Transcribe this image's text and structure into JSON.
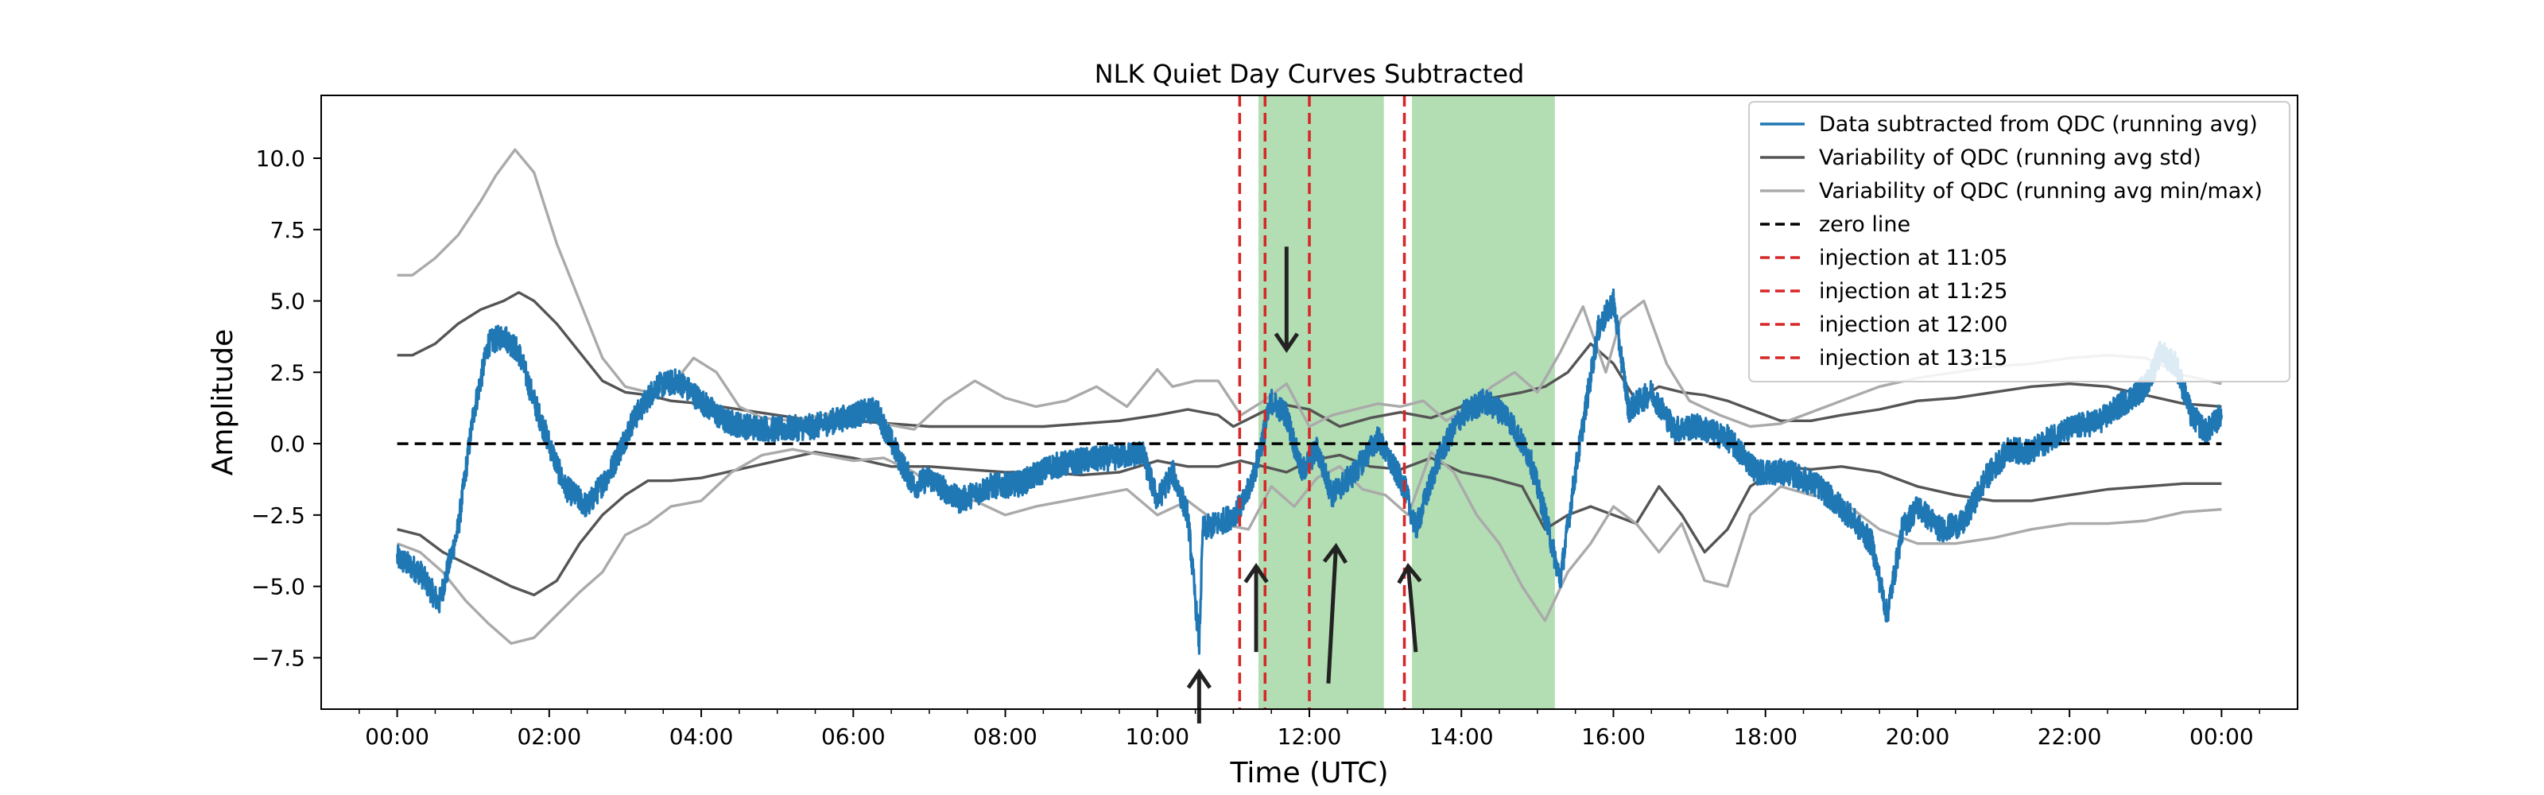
{
  "chart_data": {
    "type": "line",
    "title": "NLK Quiet Day Curves Subtracted",
    "xlabel": "Time (UTC)",
    "ylabel": "Amplitude",
    "xlim": [
      -1.0,
      25.0
    ],
    "ylim": [
      -9.3,
      12.2
    ],
    "grid": false,
    "legend_position": "top-right",
    "x_ticks": [
      0,
      2,
      4,
      6,
      8,
      10,
      12,
      14,
      16,
      18,
      20,
      22,
      24
    ],
    "x_tick_labels": [
      "00:00",
      "02:00",
      "04:00",
      "06:00",
      "08:00",
      "10:00",
      "12:00",
      "14:00",
      "16:00",
      "18:00",
      "20:00",
      "22:00",
      "00:00"
    ],
    "y_ticks": [
      -7.5,
      -5.0,
      -2.5,
      0.0,
      2.5,
      5.0,
      7.5,
      10.0
    ],
    "y_tick_labels": [
      "−7.5",
      "−5.0",
      "−2.5",
      "0.0",
      "2.5",
      "5.0",
      "7.5",
      "10.0"
    ],
    "series": [
      {
        "name": "Data subtracted from QDC (running avg)",
        "color": "#1f77b4",
        "style": "solid",
        "noisy": true,
        "x": [
          0,
          0.3,
          0.55,
          0.8,
          1.0,
          1.2,
          1.4,
          1.6,
          1.8,
          2.0,
          2.2,
          2.5,
          2.8,
          3.1,
          3.4,
          3.7,
          4.0,
          4.3,
          4.6,
          5.0,
          5.5,
          6.0,
          6.3,
          6.6,
          6.8,
          7.0,
          7.4,
          7.8,
          8.2,
          8.6,
          9.0,
          9.4,
          9.8,
          10.0,
          10.2,
          10.4,
          10.5,
          10.55,
          10.6,
          10.8,
          11.0,
          11.15,
          11.3,
          11.5,
          11.7,
          11.9,
          12.1,
          12.3,
          12.6,
          12.9,
          13.1,
          13.25,
          13.4,
          13.7,
          14.0,
          14.3,
          14.6,
          14.9,
          15.1,
          15.3,
          15.5,
          15.8,
          16.0,
          16.2,
          16.5,
          16.8,
          17.1,
          17.5,
          17.9,
          18.3,
          18.7,
          19.1,
          19.4,
          19.6,
          19.8,
          20.0,
          20.3,
          20.6,
          20.9,
          21.2,
          21.5,
          21.8,
          22.1,
          22.4,
          22.7,
          23.0,
          23.2,
          23.4,
          23.6,
          23.8,
          24.0
        ],
        "y": [
          -4.0,
          -4.5,
          -5.6,
          -3.0,
          1.0,
          3.5,
          3.8,
          3.2,
          1.5,
          0.0,
          -1.5,
          -2.2,
          -1.0,
          0.8,
          2.0,
          2.2,
          1.5,
          0.8,
          0.6,
          0.5,
          0.6,
          1.0,
          1.2,
          -0.5,
          -1.5,
          -1.2,
          -2.0,
          -1.5,
          -1.4,
          -0.8,
          -0.6,
          -0.5,
          -0.3,
          -2.0,
          -1.0,
          -2.5,
          -5.5,
          -7.0,
          -3.0,
          -2.8,
          -2.5,
          -2.0,
          -0.8,
          1.5,
          1.0,
          -1.0,
          -0.2,
          -1.8,
          -1.0,
          0.2,
          -0.8,
          -1.5,
          -3.0,
          -0.5,
          1.0,
          1.5,
          1.0,
          -0.5,
          -2.5,
          -4.8,
          -1.0,
          4.0,
          5.0,
          1.2,
          1.8,
          0.5,
          0.6,
          0.2,
          -1.0,
          -1.0,
          -1.5,
          -2.5,
          -3.5,
          -6.0,
          -3.0,
          -2.2,
          -3.0,
          -2.8,
          -1.2,
          -0.2,
          -0.3,
          0.3,
          0.6,
          0.8,
          1.4,
          2.0,
          3.2,
          2.8,
          1.0,
          0.4,
          1.0
        ]
      },
      {
        "name": "Variability of QDC (running avg std)",
        "color": "#555555",
        "style": "solid",
        "x": [
          0,
          0.2,
          0.5,
          0.8,
          1.1,
          1.4,
          1.6,
          1.8,
          2.1,
          2.4,
          2.7,
          3.0,
          3.3,
          3.6,
          4.0,
          4.5,
          5.0,
          5.5,
          6.0,
          6.5,
          7.0,
          7.5,
          8.0,
          8.5,
          9.0,
          9.5,
          10.0,
          10.4,
          10.8,
          11.0,
          11.3,
          11.6,
          12.0,
          12.4,
          12.8,
          13.2,
          13.6,
          14.0,
          14.4,
          14.8,
          15.1,
          15.4,
          15.7,
          16.0,
          16.3,
          16.6,
          16.9,
          17.2,
          17.5,
          17.8,
          18.2,
          18.6,
          19.0,
          19.5,
          20.0,
          20.5,
          21.0,
          21.5,
          22.0,
          22.5,
          23.0,
          23.5,
          24.0
        ],
        "y": [
          3.1,
          3.1,
          3.5,
          4.2,
          4.7,
          5.0,
          5.3,
          5.0,
          4.2,
          3.2,
          2.2,
          1.8,
          1.7,
          1.5,
          1.4,
          1.2,
          1.0,
          0.8,
          0.8,
          0.7,
          0.6,
          0.6,
          0.6,
          0.6,
          0.7,
          0.8,
          1.0,
          1.2,
          1.0,
          0.6,
          1.0,
          1.4,
          1.2,
          0.6,
          0.9,
          1.1,
          0.9,
          1.3,
          1.6,
          1.8,
          2.0,
          2.5,
          3.5,
          2.8,
          1.5,
          2.0,
          1.8,
          1.7,
          1.5,
          1.2,
          0.8,
          0.8,
          1.0,
          1.2,
          1.5,
          1.6,
          1.8,
          2.0,
          2.1,
          2.0,
          1.7,
          1.4,
          1.3
        ]
      },
      {
        "name": "",
        "color": "#555555",
        "style": "solid",
        "x": [
          0,
          0.3,
          0.6,
          0.9,
          1.2,
          1.5,
          1.8,
          2.1,
          2.4,
          2.7,
          3.0,
          3.3,
          3.6,
          4.0,
          4.5,
          5.0,
          5.5,
          6.0,
          6.5,
          7.0,
          7.5,
          8.0,
          8.5,
          9.0,
          9.5,
          10.0,
          10.4,
          10.8,
          11.1,
          11.4,
          11.7,
          12.0,
          12.4,
          12.8,
          13.2,
          13.6,
          14.0,
          14.4,
          14.8,
          15.1,
          15.4,
          15.7,
          16.0,
          16.3,
          16.6,
          16.9,
          17.2,
          17.5,
          17.8,
          18.2,
          18.6,
          19.0,
          19.5,
          20.0,
          20.5,
          21.0,
          21.5,
          22.0,
          22.5,
          23.0,
          23.5,
          24.0
        ],
        "y": [
          -3.0,
          -3.2,
          -3.8,
          -4.2,
          -4.6,
          -5.0,
          -5.3,
          -4.8,
          -3.5,
          -2.5,
          -1.8,
          -1.3,
          -1.3,
          -1.2,
          -0.9,
          -0.6,
          -0.3,
          -0.5,
          -0.8,
          -0.8,
          -0.9,
          -1.0,
          -1.0,
          -1.1,
          -1.0,
          -0.6,
          -0.8,
          -0.8,
          -0.6,
          -0.8,
          -1.0,
          -0.6,
          -0.4,
          -0.8,
          -0.9,
          -0.5,
          -1.0,
          -1.2,
          -1.5,
          -3.0,
          -2.5,
          -2.2,
          -2.5,
          -2.8,
          -1.5,
          -2.5,
          -3.8,
          -3.0,
          -1.5,
          -0.8,
          -0.9,
          -0.8,
          -1.0,
          -1.5,
          -1.8,
          -2.0,
          -2.0,
          -1.8,
          -1.6,
          -1.5,
          -1.4,
          -1.4
        ]
      },
      {
        "name": "Variability of QDC (running avg min/max)",
        "color": "#aaaaaa",
        "style": "solid",
        "x": [
          0,
          0.2,
          0.5,
          0.8,
          1.1,
          1.3,
          1.55,
          1.8,
          2.1,
          2.4,
          2.7,
          3.0,
          3.3,
          3.6,
          3.9,
          4.2,
          4.5,
          4.8,
          5.2,
          5.6,
          6.0,
          6.4,
          6.8,
          7.2,
          7.6,
          8.0,
          8.4,
          8.8,
          9.2,
          9.6,
          10.0,
          10.2,
          10.5,
          10.8,
          11.1,
          11.4,
          11.7,
          12.0,
          12.3,
          12.6,
          12.9,
          13.2,
          13.5,
          13.8,
          14.1,
          14.4,
          14.7,
          15.0,
          15.3,
          15.6,
          15.9,
          16.1,
          16.4,
          16.7,
          17.0,
          17.4,
          17.8,
          18.2,
          18.6,
          19.0,
          19.5,
          20.0,
          20.5,
          21.0,
          21.5,
          22.0,
          22.5,
          23.0,
          23.5,
          24.0
        ],
        "y": [
          5.9,
          5.9,
          6.5,
          7.3,
          8.5,
          9.4,
          10.3,
          9.5,
          7.0,
          5.0,
          3.0,
          2.0,
          1.8,
          2.0,
          3.0,
          2.5,
          1.3,
          0.9,
          0.8,
          1.0,
          1.2,
          0.7,
          0.5,
          1.5,
          2.2,
          1.6,
          1.3,
          1.5,
          2.0,
          1.3,
          2.6,
          2.0,
          2.2,
          2.2,
          1.0,
          1.5,
          2.1,
          0.6,
          1.0,
          1.2,
          1.4,
          1.3,
          1.5,
          0.8,
          1.3,
          2.0,
          2.5,
          1.8,
          3.2,
          4.8,
          2.5,
          4.4,
          5.0,
          2.8,
          1.5,
          1.0,
          0.6,
          0.7,
          1.1,
          1.5,
          2.0,
          2.3,
          2.5,
          2.7,
          2.8,
          3.0,
          3.1,
          3.0,
          2.4,
          2.1
        ]
      },
      {
        "name": "",
        "color": "#aaaaaa",
        "style": "solid",
        "x": [
          0,
          0.3,
          0.6,
          0.9,
          1.2,
          1.5,
          1.8,
          2.1,
          2.4,
          2.7,
          3.0,
          3.3,
          3.6,
          4.0,
          4.4,
          4.8,
          5.2,
          5.6,
          6.0,
          6.4,
          6.8,
          7.2,
          7.6,
          8.0,
          8.4,
          8.8,
          9.2,
          9.6,
          10.0,
          10.4,
          10.8,
          11.2,
          11.5,
          11.8,
          12.1,
          12.4,
          12.7,
          13.0,
          13.3,
          13.6,
          13.9,
          14.2,
          14.5,
          14.8,
          15.1,
          15.4,
          15.7,
          16.0,
          16.3,
          16.6,
          16.9,
          17.2,
          17.5,
          17.8,
          18.2,
          18.6,
          19.0,
          19.5,
          20.0,
          20.5,
          21.0,
          21.5,
          22.0,
          22.5,
          23.0,
          23.5,
          24.0
        ],
        "y": [
          -3.5,
          -3.8,
          -4.5,
          -5.5,
          -6.3,
          -7.0,
          -6.8,
          -6.0,
          -5.2,
          -4.5,
          -3.2,
          -2.8,
          -2.2,
          -2.0,
          -1.0,
          -0.4,
          -0.2,
          -0.4,
          -0.6,
          -0.5,
          -1.0,
          -1.8,
          -2.0,
          -2.5,
          -2.2,
          -2.0,
          -1.8,
          -1.6,
          -2.5,
          -2.0,
          -2.8,
          -3.0,
          -1.5,
          -2.2,
          -1.2,
          -0.8,
          -1.6,
          -1.8,
          -2.5,
          -0.3,
          -1.0,
          -2.5,
          -3.5,
          -5.0,
          -6.2,
          -4.5,
          -3.5,
          -2.2,
          -2.8,
          -3.8,
          -2.8,
          -4.8,
          -5.0,
          -2.5,
          -1.5,
          -1.8,
          -2.0,
          -3.0,
          -3.5,
          -3.5,
          -3.3,
          -3.0,
          -2.8,
          -2.8,
          -2.7,
          -2.4,
          -2.3
        ]
      }
    ],
    "reference_lines": [
      {
        "name": "zero line",
        "orientation": "horizontal",
        "value": 0.0,
        "color": "#000000",
        "style": "dashed"
      }
    ],
    "injections": [
      {
        "name": "injection at 11:05",
        "x": 11.083,
        "color": "#d62728",
        "style": "dashed"
      },
      {
        "name": "injection at 11:25",
        "x": 11.417,
        "color": "#d62728",
        "style": "dashed"
      },
      {
        "name": "injection at 12:00",
        "x": 12.0,
        "color": "#d62728",
        "style": "dashed"
      },
      {
        "name": "injection at 13:15",
        "x": 13.25,
        "color": "#d62728",
        "style": "dashed"
      }
    ],
    "shaded_regions": [
      {
        "x0": 11.33,
        "x1": 12.98,
        "color": "#2ca02c",
        "alpha": 0.36
      },
      {
        "x0": 13.35,
        "x1": 15.23,
        "color": "#2ca02c",
        "alpha": 0.36
      }
    ],
    "arrows": [
      {
        "direction": "up",
        "x_start": 10.55,
        "y_start": -9.8,
        "x_end": 10.55,
        "y_end": -8.0
      },
      {
        "direction": "up",
        "x_start": 11.3,
        "y_start": -7.3,
        "x_end": 11.3,
        "y_end": -4.3
      },
      {
        "direction": "up",
        "x_start": 12.25,
        "y_start": -8.4,
        "x_end": 12.35,
        "y_end": -3.6
      },
      {
        "direction": "up",
        "x_start": 13.4,
        "y_start": -7.3,
        "x_end": 13.3,
        "y_end": -4.3
      },
      {
        "direction": "down",
        "x_start": 11.7,
        "y_start": 6.9,
        "x_end": 11.7,
        "y_end": 3.3
      }
    ],
    "legend": [
      {
        "label": "Data subtracted from QDC (running avg)",
        "color": "#1f77b4",
        "style": "solid"
      },
      {
        "label": "Variability of QDC (running avg std)",
        "color": "#555555",
        "style": "solid"
      },
      {
        "label": "Variability of QDC (running avg min/max)",
        "color": "#aaaaaa",
        "style": "solid"
      },
      {
        "label": "zero line",
        "color": "#000000",
        "style": "dashed"
      },
      {
        "label": "injection at 11:05",
        "color": "#d62728",
        "style": "dashed"
      },
      {
        "label": "injection at 11:25",
        "color": "#d62728",
        "style": "dashed"
      },
      {
        "label": "injection at 12:00",
        "color": "#d62728",
        "style": "dashed"
      },
      {
        "label": "injection at 13:15",
        "color": "#d62728",
        "style": "dashed"
      }
    ]
  }
}
